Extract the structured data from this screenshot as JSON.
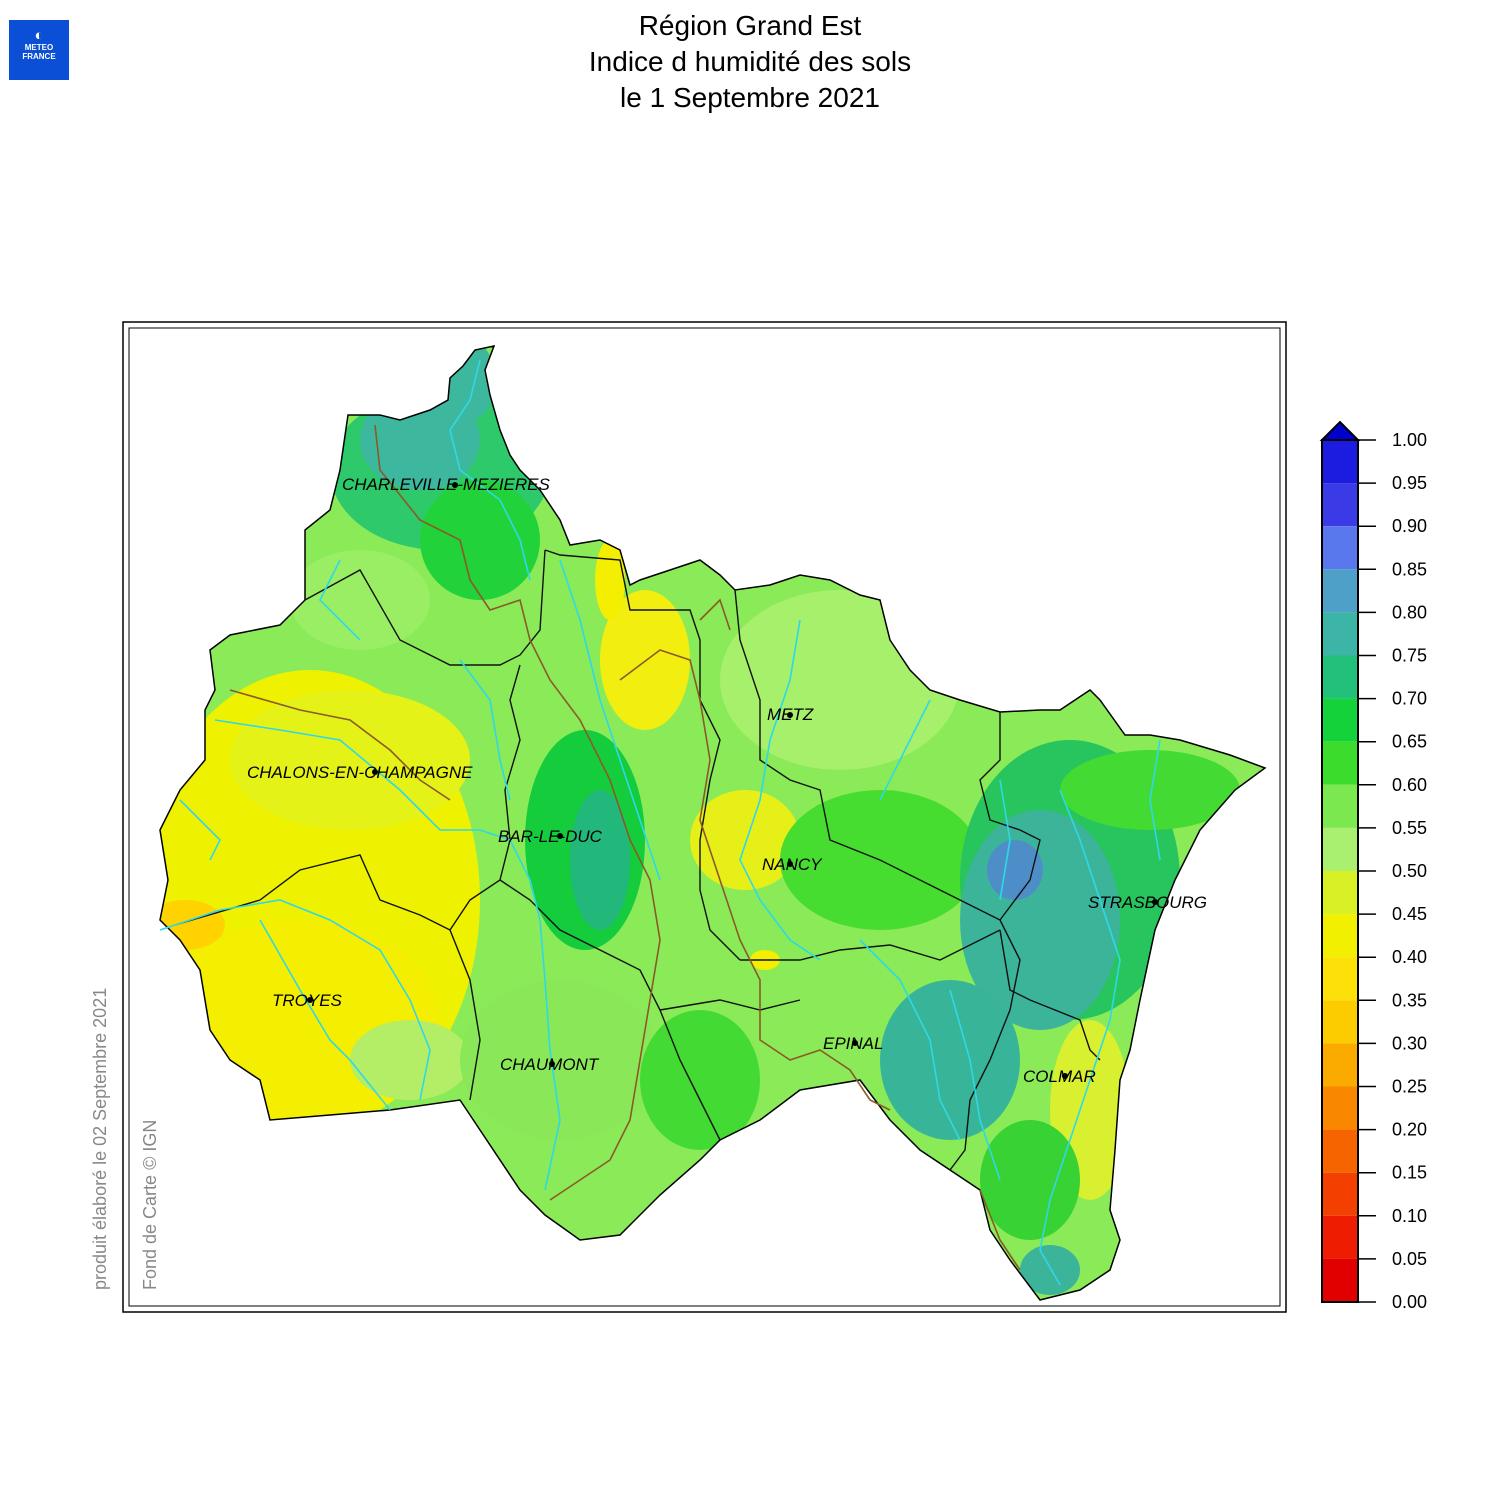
{
  "header": {
    "logo_line1": "METEO",
    "logo_line2": "FRANCE",
    "title_line1": "Région Grand Est",
    "title_line2": "Indice d humidité des sols",
    "title_line3": "le 1 Septembre 2021"
  },
  "credits": {
    "produced": "produit élaboré le 02 Septembre 2021",
    "basemap": "Fond de Carte © IGN"
  },
  "cities": [
    {
      "name": "CHARLEVILLE-MEZIERES"
    },
    {
      "name": "METZ"
    },
    {
      "name": "CHALONS-EN-CHAMPAGNE"
    },
    {
      "name": "BAR-LE-DUC"
    },
    {
      "name": "NANCY"
    },
    {
      "name": "STRASBOURG"
    },
    {
      "name": "TROYES"
    },
    {
      "name": "CHAUMONT"
    },
    {
      "name": "EPINAL"
    },
    {
      "name": "COLMAR"
    }
  ],
  "legend": {
    "ticks": [
      "1.00",
      "0.95",
      "0.90",
      "0.85",
      "0.80",
      "0.75",
      "0.70",
      "0.65",
      "0.60",
      "0.55",
      "0.50",
      "0.45",
      "0.40",
      "0.35",
      "0.30",
      "0.25",
      "0.20",
      "0.15",
      "0.10",
      "0.05",
      "0.00"
    ],
    "colors_top_to_bottom": [
      "#1c1ce0",
      "#3a3ae6",
      "#5a78ee",
      "#4ea0c8",
      "#3cb5a6",
      "#22c07a",
      "#14d23a",
      "#3cdc2c",
      "#7ae84e",
      "#aaf070",
      "#d8f026",
      "#f0f000",
      "#fde008",
      "#fccc00",
      "#fbaa00",
      "#f98800",
      "#f66400",
      "#f34000",
      "#ee1c00",
      "#e00000"
    ],
    "overflow_color": "#0000cc"
  }
}
